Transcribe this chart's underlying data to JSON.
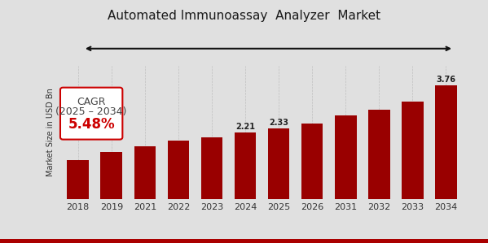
{
  "title": "Automated Immunoassay  Analyzer  Market",
  "ylabel": "Market Size in USD Bn",
  "categories": [
    "2018",
    "2019",
    "2021",
    "2022",
    "2023",
    "2024",
    "2025",
    "2026",
    "2031",
    "2032",
    "2033",
    "2034"
  ],
  "values": [
    1.3,
    1.55,
    1.75,
    1.92,
    2.05,
    2.21,
    2.33,
    2.5,
    2.75,
    2.95,
    3.22,
    3.76
  ],
  "bar_color": "#990000",
  "bg_color": "#e0e0e0",
  "value_labels": [
    null,
    null,
    null,
    null,
    null,
    "2.21",
    "2.33",
    null,
    null,
    null,
    null,
    "3.76"
  ],
  "cagr_text_line1": "CAGR",
  "cagr_text_line2": "(2025 – 2034)",
  "cagr_value": "5.48%",
  "cagr_color": "#cc0000",
  "arrow_color": "#111111",
  "title_fontsize": 11,
  "label_fontsize": 7,
  "tick_fontsize": 8,
  "bottom_bar_color": "#aa0000",
  "bottom_bar_height": 0.018
}
